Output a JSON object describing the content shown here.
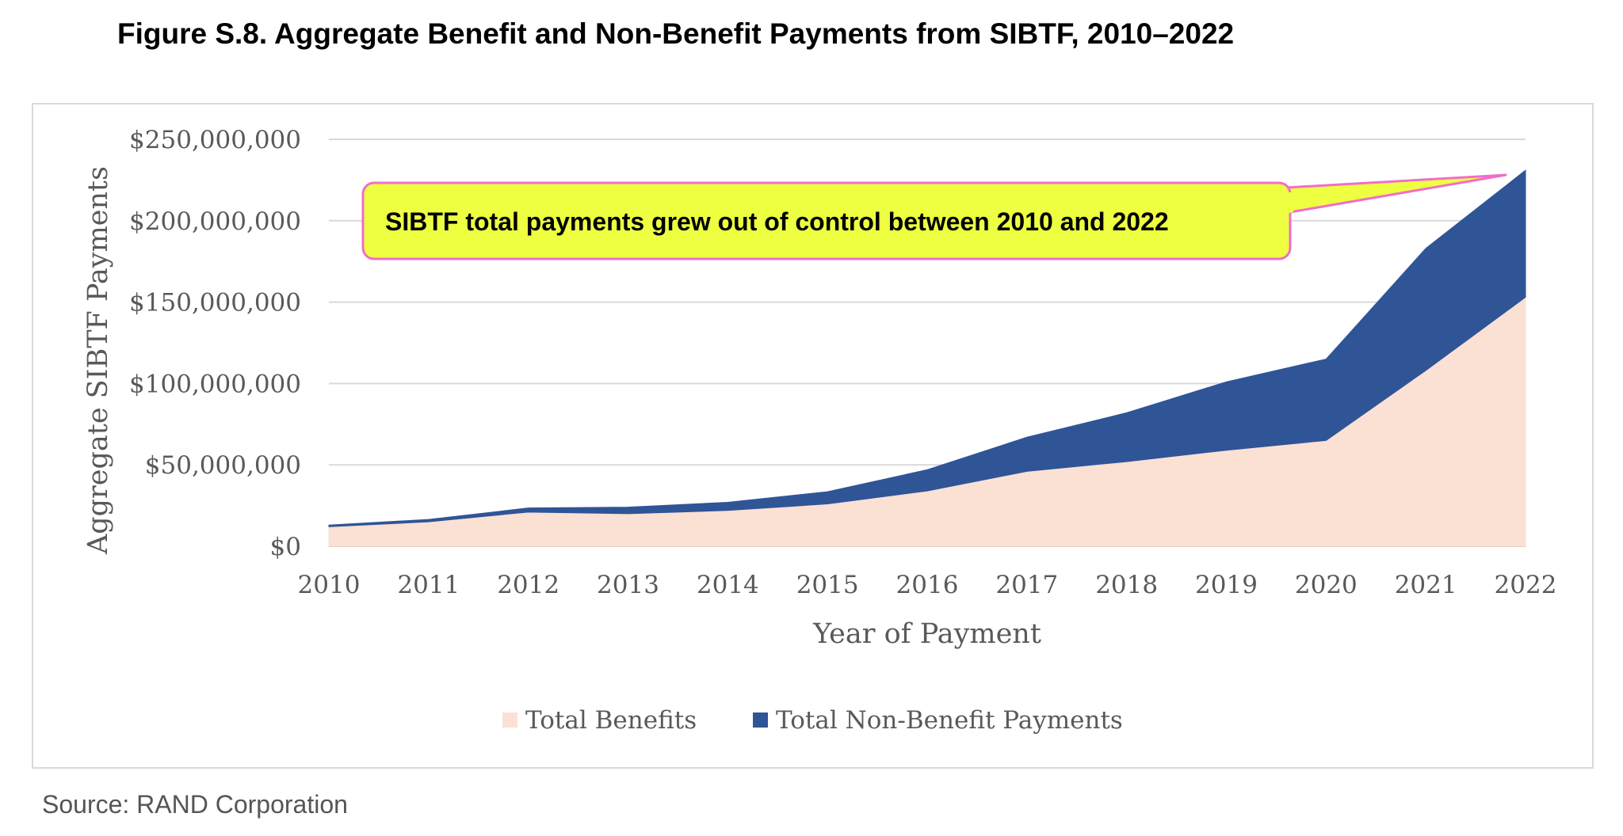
{
  "figure": {
    "title": "Figure S.8. Aggregate Benefit and Non-Benefit Payments from SIBTF, 2010–2022",
    "source": "Source: RAND Corporation"
  },
  "callout": {
    "text": "SIBTF total payments grew out of control between 2010 and 2022",
    "fill_color": "#EEFF41",
    "border_color": "#F06EC8"
  },
  "chart_data": {
    "type": "area",
    "stacked": true,
    "title": "",
    "xlabel": "Year of Payment",
    "ylabel": "Aggregate SIBTF Payments",
    "x": [
      "2010",
      "2011",
      "2012",
      "2013",
      "2014",
      "2015",
      "2016",
      "2017",
      "2018",
      "2019",
      "2020",
      "2021",
      "2022"
    ],
    "ylim": [
      0,
      250000000
    ],
    "yticks": [
      0,
      50000000,
      100000000,
      150000000,
      200000000,
      250000000
    ],
    "ytick_labels": [
      "$0",
      "$50,000,000",
      "$100,000,000",
      "$150,000,000",
      "$200,000,000",
      "$250,000,000"
    ],
    "grid": true,
    "legend_position": "bottom",
    "series": [
      {
        "name": "Total Benefits",
        "color": "#FBE0D4",
        "values": [
          12000000,
          15000000,
          21000000,
          20000000,
          22000000,
          26000000,
          34000000,
          46000000,
          52000000,
          59000000,
          65000000,
          108000000,
          153000000
        ]
      },
      {
        "name": "Total Non-Benefit Payments",
        "color": "#2F5597",
        "values": [
          1000000,
          1500000,
          2500000,
          4000000,
          5000000,
          7500000,
          13000000,
          21000000,
          30000000,
          42000000,
          50000000,
          75000000,
          78000000
        ]
      }
    ]
  }
}
